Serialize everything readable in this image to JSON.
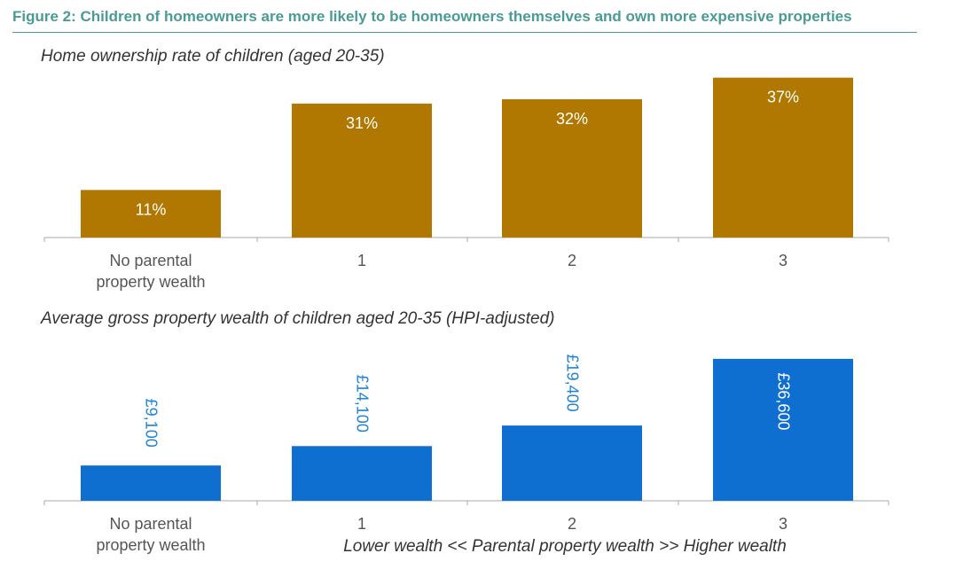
{
  "header": {
    "figure_title": "Figure 2:  Children of homeowners are more likely to be homeowners themselves and own more expensive properties"
  },
  "colors": {
    "title": "#4a9b96",
    "top_bars": "#b07800",
    "bottom_bars": "#0f6fd0",
    "bottom_labels": "#1f84d6"
  },
  "chart_data": [
    {
      "type": "bar",
      "title": "Home ownership rate of children (aged 20-35)",
      "categories": [
        "No parental property wealth",
        "1",
        "2",
        "3"
      ],
      "values": [
        11,
        31,
        32,
        37
      ],
      "value_labels": [
        "11%",
        "31%",
        "32%",
        "37%"
      ],
      "ylim": [
        0,
        40
      ],
      "grid": false
    },
    {
      "type": "bar",
      "title": "Average gross property wealth of children aged 20-35 (HPI-adjusted)",
      "categories": [
        "No parental property wealth",
        "1",
        "2",
        "3"
      ],
      "values": [
        9100,
        14100,
        19400,
        36600
      ],
      "value_labels": [
        "£9,100",
        "£14,100",
        "£19,400",
        "£36,600"
      ],
      "xlabel": "Lower wealth <<  Parental property wealth >> Higher wealth",
      "ylim": [
        0,
        40000
      ],
      "grid": false
    }
  ]
}
